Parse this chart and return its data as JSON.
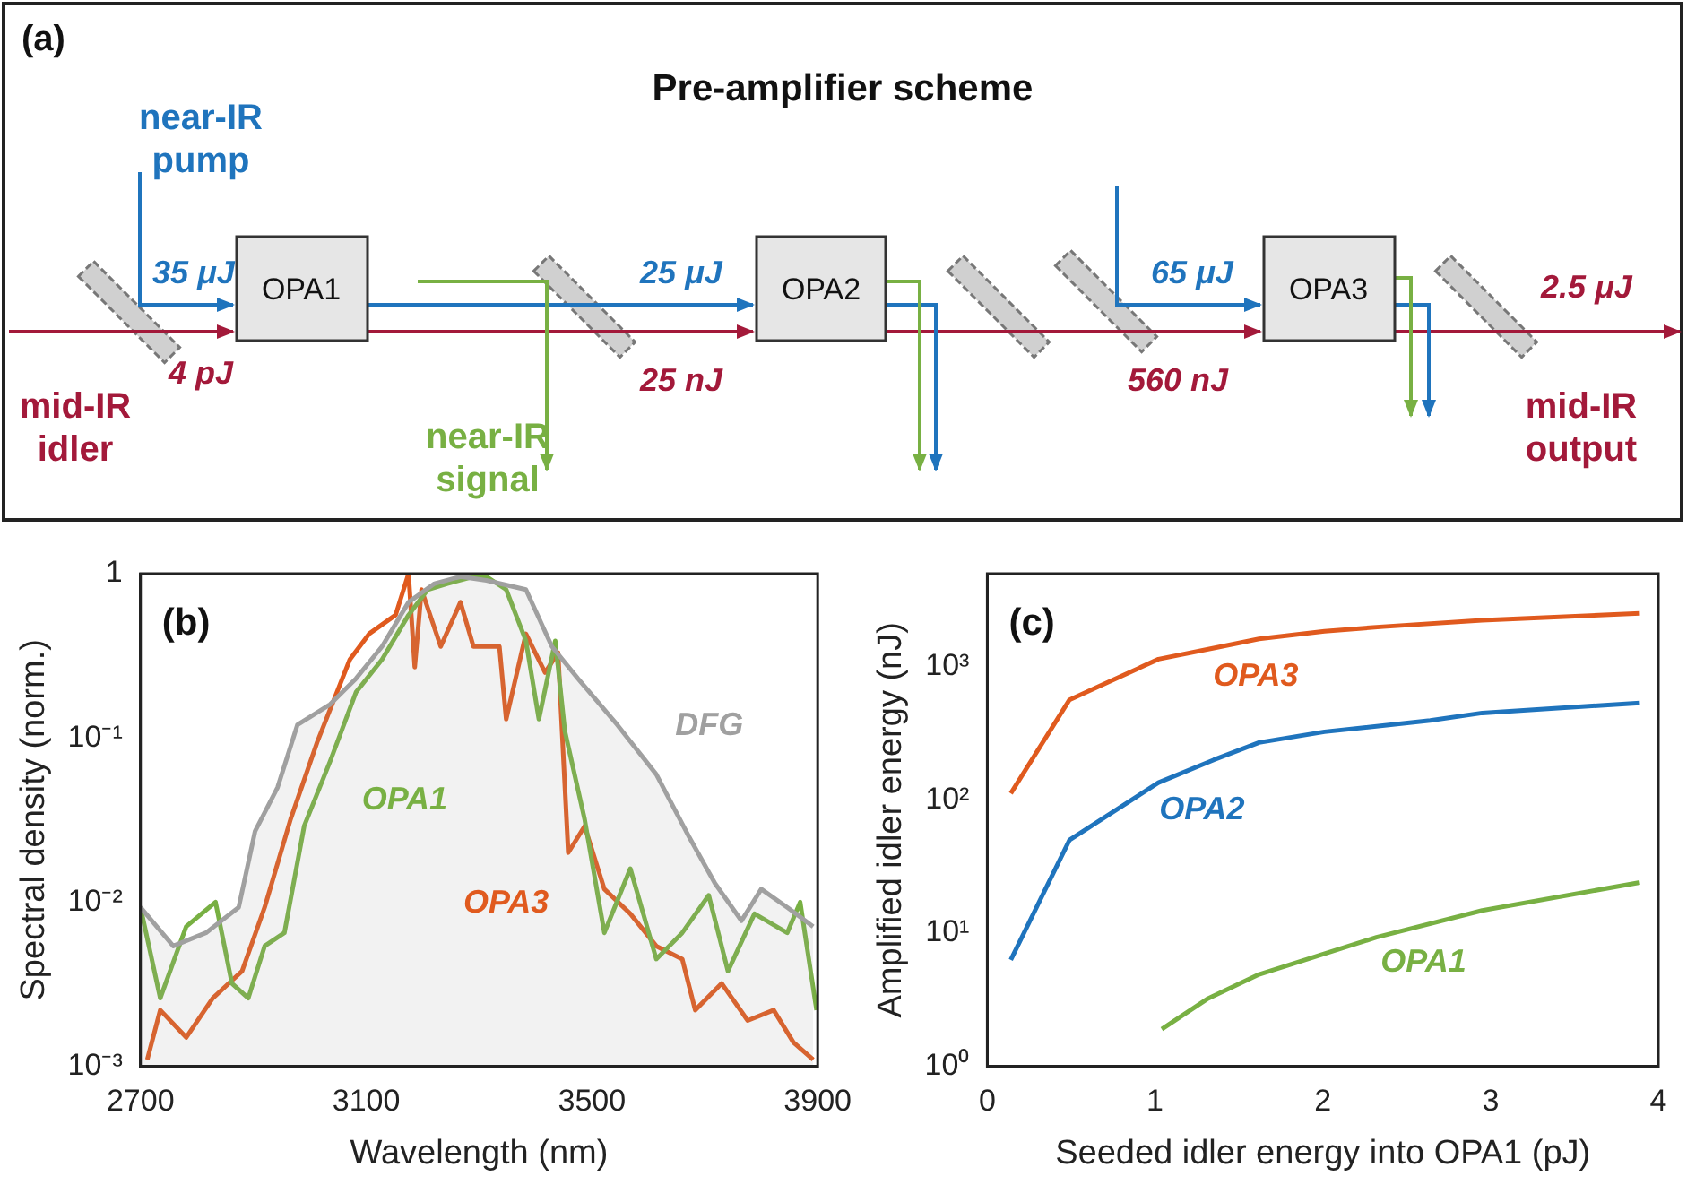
{
  "chart_data": [
    {
      "type": "other",
      "title": "Pre-amplifier scheme",
      "annotations": [
        "(a)",
        "near-IR pump",
        "35 μJ",
        "4 pJ",
        "mid-IR idler",
        "OPA1",
        "near-IR signal",
        "25 μJ",
        "25 nJ",
        "OPA2",
        "65 μJ",
        "560 nJ",
        "OPA3",
        "2.5 μJ",
        "mid-IR output"
      ]
    },
    {
      "type": "line",
      "xlabel": "Wavelength (nm)",
      "ylabel": "Spectral density (norm.)",
      "log": "y",
      "annotations": [
        "(b)"
      ],
      "xlim": [
        2700,
        3900
      ],
      "xticks": [
        2700,
        3100,
        3500,
        3900
      ],
      "ylim": [
        0.001,
        1
      ],
      "yticks": [
        {
          "value": 0.001,
          "label": "10⁻³"
        },
        {
          "value": 0.01,
          "label": "10⁻²"
        },
        {
          "value": 0.1,
          "label": "10⁻¹"
        },
        1
      ],
      "series": [
        {
          "name": "DFG",
          "type": "area",
          "color": "#a0a0a0",
          "x": [
            2700,
            2758,
            2816,
            2874,
            2903,
            2943,
            2978,
            3036,
            3082,
            3128,
            3175,
            3221,
            3267,
            3313,
            3383,
            3429,
            3475,
            3545,
            3614,
            3672,
            3718,
            3765,
            3800,
            3846,
            3892
          ],
          "values": [
            0.0093,
            0.0054,
            0.0065,
            0.0093,
            0.027,
            0.05,
            0.12,
            0.16,
            0.23,
            0.36,
            0.67,
            0.87,
            0.96,
            0.91,
            0.8,
            0.36,
            0.23,
            0.12,
            0.06,
            0.025,
            0.013,
            0.0077,
            0.012,
            0.0093,
            0.0071
          ]
        },
        {
          "name": "OPA1",
          "color": "#78b043",
          "x": [
            2700,
            2735,
            2781,
            2833,
            2862,
            2891,
            2920,
            2955,
            2990,
            3036,
            3082,
            3128,
            3175,
            3209,
            3244,
            3290,
            3313,
            3348,
            3383,
            3406,
            3435,
            3452,
            3487,
            3522,
            3568,
            3614,
            3660,
            3707,
            3741,
            3788,
            3846,
            3869,
            3898
          ],
          "values": [
            0.0093,
            0.0026,
            0.0071,
            0.01,
            0.0032,
            0.0026,
            0.0054,
            0.0065,
            0.029,
            0.072,
            0.19,
            0.3,
            0.56,
            0.8,
            0.87,
            0.96,
            0.96,
            0.8,
            0.39,
            0.13,
            0.39,
            0.11,
            0.032,
            0.0065,
            0.016,
            0.0045,
            0.0065,
            0.011,
            0.0038,
            0.0085,
            0.0065,
            0.01,
            0.0022
          ]
        },
        {
          "name": "OPA3",
          "color": "#e05a1e",
          "x": [
            2712,
            2735,
            2781,
            2828,
            2880,
            2920,
            2966,
            3013,
            3071,
            3105,
            3152,
            3175,
            3186,
            3198,
            3232,
            3267,
            3290,
            3336,
            3348,
            3383,
            3417,
            3440,
            3458,
            3487,
            3522,
            3568,
            3614,
            3660,
            3683,
            3730,
            3776,
            3822,
            3857,
            3892
          ],
          "values": [
            0.0011,
            0.0022,
            0.0015,
            0.0026,
            0.0038,
            0.0093,
            0.032,
            0.094,
            0.3,
            0.43,
            0.56,
            1,
            0.27,
            0.8,
            0.36,
            0.67,
            0.36,
            0.36,
            0.13,
            0.43,
            0.25,
            0.33,
            0.02,
            0.029,
            0.012,
            0.0085,
            0.0054,
            0.0045,
            0.0022,
            0.0032,
            0.0019,
            0.0022,
            0.0014,
            0.0011
          ]
        }
      ]
    },
    {
      "type": "line",
      "xlabel": "Seeded idler energy into OPA1 (pJ)",
      "ylabel": "Amplified idler energy (nJ)",
      "log": "y",
      "annotations": [
        "(c)"
      ],
      "xlim": [
        0,
        4
      ],
      "xticks": [
        0,
        1,
        2,
        3,
        4
      ],
      "ylim": [
        1,
        5000
      ],
      "yticks": [
        {
          "value": 1,
          "label": "10⁰"
        },
        {
          "value": 10,
          "label": "10¹"
        },
        {
          "value": 100,
          "label": "10²"
        },
        {
          "value": 1000,
          "label": "10³"
        }
      ],
      "series": [
        {
          "name": "OPA3",
          "color": "#e05a1e",
          "x": [
            0.14,
            0.49,
            1.02,
            1.35,
            1.62,
            2.01,
            2.36,
            2.95,
            3.89
          ],
          "values": [
            112,
            565,
            1140,
            1380,
            1620,
            1850,
            2000,
            2230,
            2520
          ]
        },
        {
          "name": "OPA2",
          "color": "#1f74bd",
          "x": [
            0.14,
            0.49,
            1.02,
            1.35,
            1.62,
            2.01,
            2.64,
            2.95,
            3.89
          ],
          "values": [
            6.3,
            50,
            135,
            200,
            270,
            325,
            395,
            450,
            535
          ]
        },
        {
          "name": "OPA1",
          "color": "#78b043",
          "x": [
            1.04,
            1.31,
            1.62,
            2.32,
            2.95,
            3.89
          ],
          "values": [
            1.9,
            3.2,
            4.9,
            9.3,
            14.8,
            24
          ]
        }
      ]
    }
  ]
}
